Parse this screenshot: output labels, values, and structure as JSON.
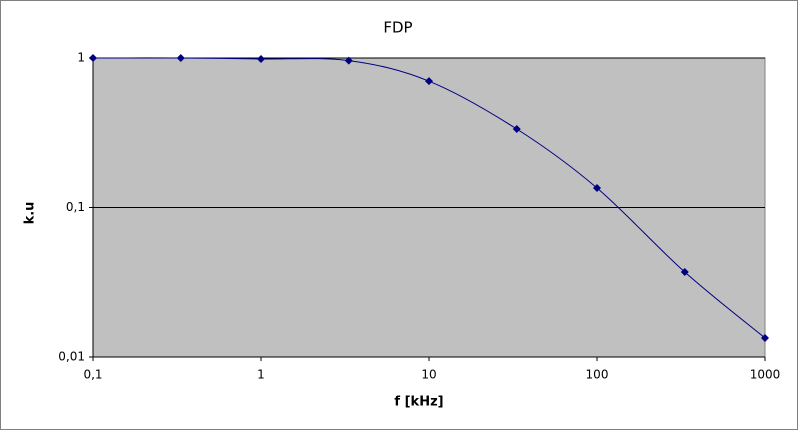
{
  "chart_data": {
    "type": "line",
    "title": "FDP",
    "x_label": "f [kHz]",
    "y_label": "k.u",
    "x": [
      0.1,
      0.333,
      1,
      3.33,
      10,
      33.3,
      100,
      333,
      1000
    ],
    "series": [
      {
        "color": "#000080",
        "values": [
          1,
          1,
          0.985,
          0.96,
          0.7,
          0.335,
          0.135,
          0.037,
          0.0134
        ]
      }
    ],
    "xlog": true,
    "ylog": true,
    "smooth": true,
    "xlim": [
      0.1,
      1000
    ],
    "ylim": [
      0.01,
      1
    ],
    "xticks": [
      {
        "value": 0.1,
        "label": "0,1"
      },
      1,
      10,
      100,
      1000
    ],
    "yticks": [
      {
        "value": 0.01,
        "label": "0,01"
      },
      {
        "value": 0.1,
        "label": "0,1"
      },
      1
    ],
    "grid": true,
    "plot_background": "#c0c0c0"
  }
}
